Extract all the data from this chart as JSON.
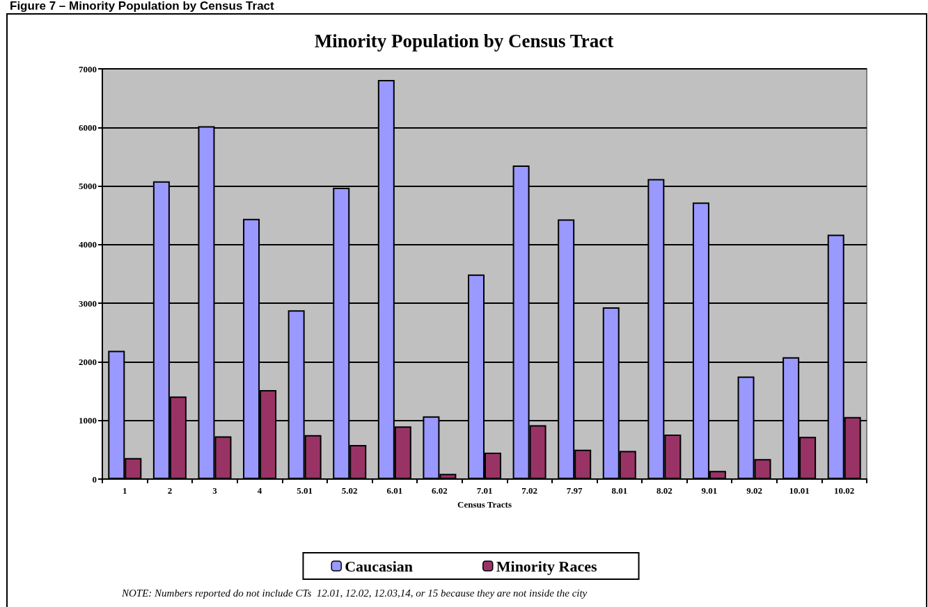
{
  "chart_data": {
    "type": "bar",
    "title": "Minority Population by Census Tract",
    "xlabel": "Census Tracts",
    "categories": [
      "1",
      "2",
      "3",
      "4",
      "5.01",
      "5.02",
      "6.01",
      "6.02",
      "7.01",
      "7.02",
      "7.97",
      "8.01",
      "8.02",
      "9.01",
      "9.02",
      "10.01",
      "10.02"
    ],
    "series": [
      {
        "name": "Caucasian",
        "color": "#9999ff",
        "values": [
          2190,
          5080,
          6020,
          4440,
          2880,
          4970,
          6810,
          1070,
          3490,
          5350,
          4430,
          2930,
          5120,
          4720,
          1750,
          2080,
          4170
        ]
      },
      {
        "name": "Minority Races",
        "color": "#993366",
        "values": [
          360,
          1410,
          730,
          1520,
          750,
          580,
          900,
          90,
          450,
          920,
          500,
          480,
          760,
          140,
          340,
          720,
          1060
        ]
      }
    ],
    "ylim": [
      0,
      7000
    ],
    "yticks": [
      0,
      1000,
      2000,
      3000,
      4000,
      5000,
      6000,
      7000
    ],
    "grid": "y",
    "legend": "bottom",
    "annotations": [
      "Figure 7 – Minority Population by Census Tract",
      "NOTE: Numbers reported do not include CTs  12.01, 12.02, 12.03,14, or 15 because they are not inside the city"
    ]
  }
}
